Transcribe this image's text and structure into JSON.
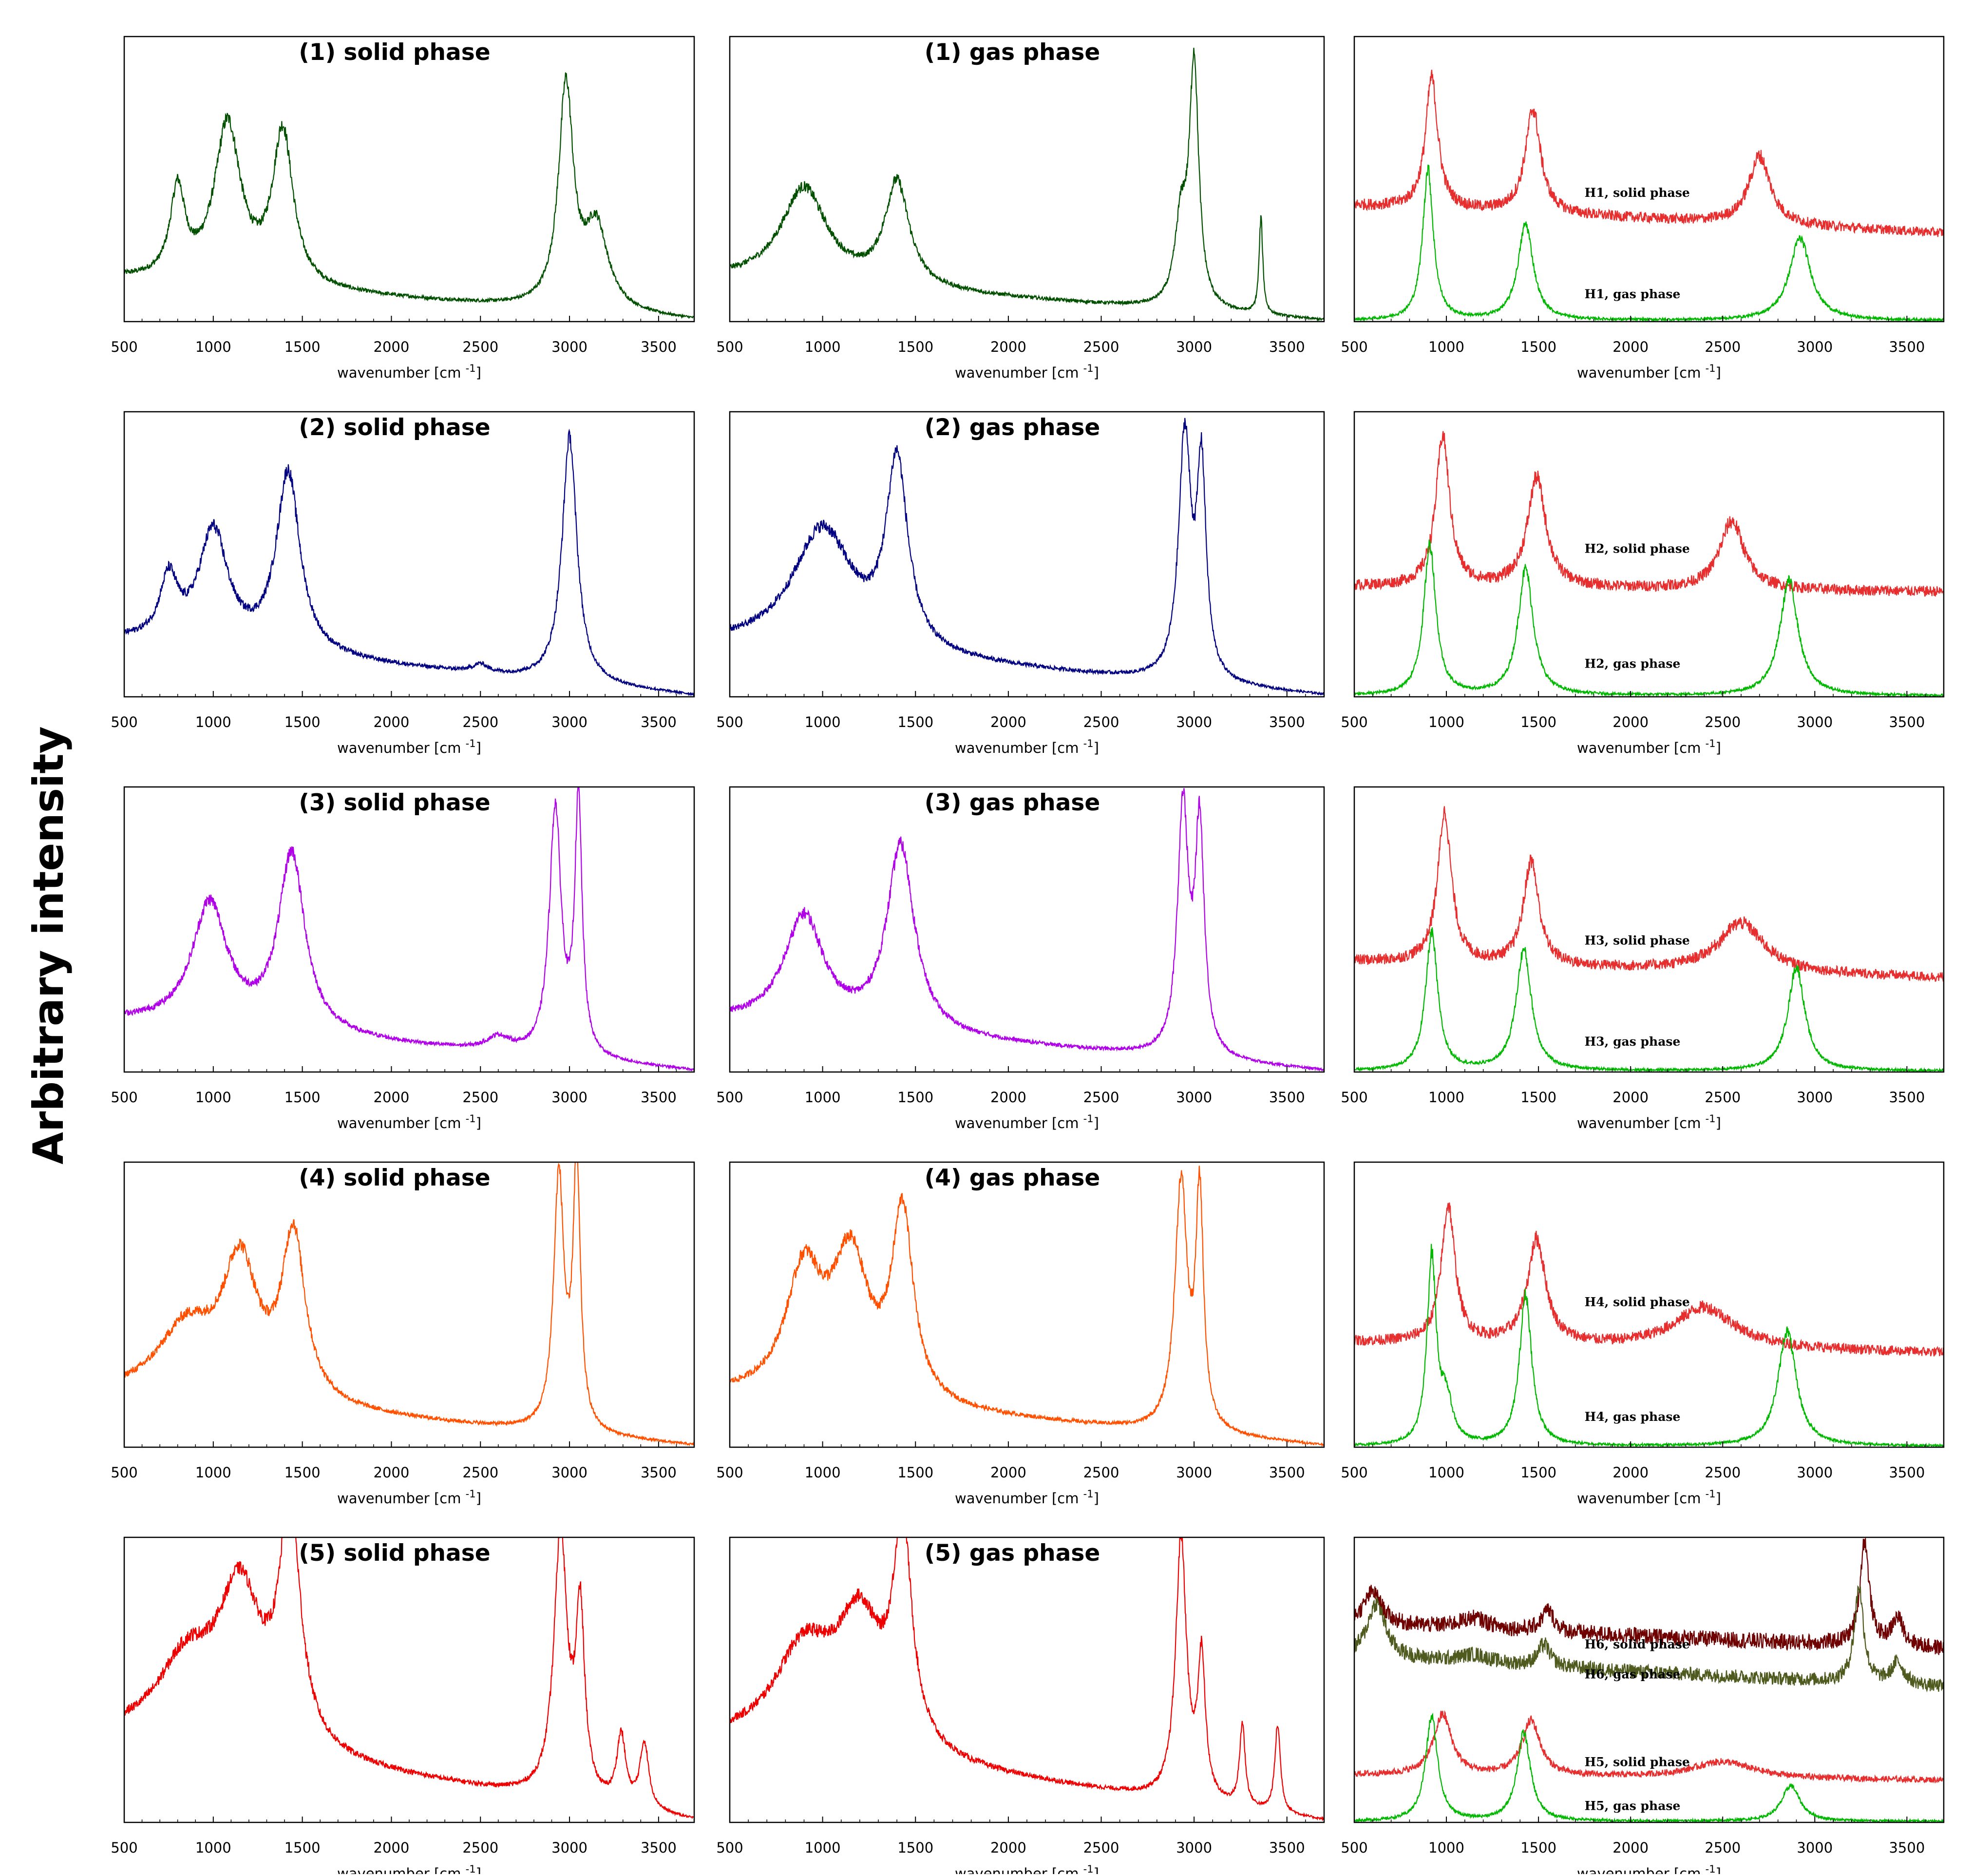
{
  "figure": {
    "ylabel": "Arbitrary intensity",
    "xlabel": "wavenumber [cm",
    "xlabel_sup": "-1",
    "xlabel_end": "]"
  },
  "chart_data": [
    {
      "type": "line",
      "row": 1,
      "col": 1,
      "title": "(1) solid phase",
      "xlim": [
        500,
        3700
      ],
      "xticks": [
        500,
        1000,
        1500,
        2000,
        2500,
        3000,
        3500
      ],
      "ylabel": "",
      "grid": false,
      "series": [
        {
          "name": "(1) solid phase",
          "color": "#005000",
          "peaks": [
            [
              800,
              0.32,
              50
            ],
            [
              1080,
              0.58,
              90
            ],
            [
              1390,
              0.56,
              70
            ],
            [
              2980,
              0.8,
              50
            ],
            [
              3150,
              0.3,
              80
            ]
          ],
          "baseline": [
            0.15,
            0.0,
            0.0
          ]
        }
      ]
    },
    {
      "type": "line",
      "row": 1,
      "col": 2,
      "title": "(1) gas phase",
      "xlim": [
        500,
        3700
      ],
      "xticks": [
        500,
        1000,
        1500,
        2000,
        2500,
        3000,
        3500
      ],
      "ylabel": "",
      "grid": false,
      "series": [
        {
          "name": "(1) gas phase",
          "color": "#005000",
          "peaks": [
            [
              900,
              0.35,
              150
            ],
            [
              1400,
              0.38,
              80
            ],
            [
              2930,
              0.3,
              40
            ],
            [
              3000,
              0.88,
              30
            ],
            [
              3360,
              0.35,
              12
            ]
          ],
          "baseline": [
            0.15,
            0.0,
            0.0
          ]
        }
      ]
    },
    {
      "type": "line",
      "row": 1,
      "col": 3,
      "title": "",
      "xlim": [
        500,
        3700
      ],
      "xticks": [
        500,
        1000,
        1500,
        2000,
        2500,
        3000,
        3500
      ],
      "ylabel": "",
      "grid": false,
      "series": [
        {
          "name": "H1, solid phase",
          "color": "#e62e2e",
          "peaks": [
            [
              920,
              0.48,
              40
            ],
            [
              1470,
              0.38,
              50
            ],
            [
              2700,
              0.25,
              70
            ]
          ],
          "baseline": [
            0.42,
            0.32,
            0.0
          ]
        },
        {
          "name": "H1, gas phase",
          "color": "#00b800",
          "peaks": [
            [
              900,
              0.55,
              35
            ],
            [
              1430,
              0.35,
              50
            ],
            [
              2920,
              0.3,
              70
            ]
          ],
          "baseline": [
            0.0,
            0.0,
            0.0
          ]
        }
      ],
      "annotations": [
        {
          "text": "H1, solid phase",
          "x": 1750,
          "y": 0.47
        },
        {
          "text": "H1, gas phase",
          "x": 1750,
          "y": 0.1
        }
      ]
    },
    {
      "type": "line",
      "row": 2,
      "col": 1,
      "title": "(2) solid phase",
      "xlim": [
        500,
        3700
      ],
      "xticks": [
        500,
        1000,
        1500,
        2000,
        2500,
        3000,
        3500
      ],
      "ylabel": "",
      "grid": false,
      "series": [
        {
          "name": "(2) solid phase",
          "color": "#000080",
          "peaks": [
            [
              750,
              0.22,
              60
            ],
            [
              1000,
              0.42,
              100
            ],
            [
              1420,
              0.66,
              80
            ],
            [
              3000,
              0.9,
              50
            ],
            [
              2500,
              0.03,
              50
            ]
          ],
          "baseline": [
            0.2,
            0.0,
            0.0
          ]
        }
      ]
    },
    {
      "type": "line",
      "row": 2,
      "col": 2,
      "title": "(2) gas phase",
      "xlim": [
        500,
        3700
      ],
      "xticks": [
        500,
        1000,
        1500,
        2000,
        2500,
        3000,
        3500
      ],
      "ylabel": "",
      "grid": false,
      "series": [
        {
          "name": "(2) gas phase",
          "color": "#000080",
          "peaks": [
            [
              1000,
              0.45,
              200
            ],
            [
              1400,
              0.68,
              70
            ],
            [
              2950,
              0.88,
              40
            ],
            [
              3040,
              0.75,
              30
            ]
          ],
          "baseline": [
            0.18,
            0.0,
            0.0
          ]
        }
      ]
    },
    {
      "type": "line",
      "row": 2,
      "col": 3,
      "title": "",
      "xlim": [
        500,
        3700
      ],
      "xticks": [
        500,
        1000,
        1500,
        2000,
        2500,
        3000,
        3500
      ],
      "ylabel": "",
      "grid": false,
      "series": [
        {
          "name": "H2, solid phase",
          "color": "#e62e2e",
          "peaks": [
            [
              980,
              0.55,
              45
            ],
            [
              1490,
              0.4,
              60
            ],
            [
              2550,
              0.25,
              80
            ]
          ],
          "baseline": [
            0.4,
            0.38,
            0.0
          ]
        },
        {
          "name": "H2, gas phase",
          "color": "#00b800",
          "peaks": [
            [
              910,
              0.55,
              40
            ],
            [
              1430,
              0.46,
              50
            ],
            [
              2860,
              0.42,
              60
            ]
          ],
          "baseline": [
            0.0,
            0.0,
            0.0
          ]
        }
      ],
      "annotations": [
        {
          "text": "H2, solid phase",
          "x": 1750,
          "y": 0.54
        },
        {
          "text": "H2, gas phase",
          "x": 1750,
          "y": 0.12
        }
      ]
    },
    {
      "type": "line",
      "row": 3,
      "col": 1,
      "title": "(3) solid phase",
      "xlim": [
        500,
        3700
      ],
      "xticks": [
        500,
        1000,
        1500,
        2000,
        2500,
        3000,
        3500
      ],
      "ylabel": "",
      "grid": false,
      "series": [
        {
          "name": "(3) solid phase",
          "color": "#b000e8",
          "peaks": [
            [
              980,
              0.45,
              120
            ],
            [
              1440,
              0.65,
              90
            ],
            [
              2920,
              0.9,
              40
            ],
            [
              3050,
              0.92,
              25
            ],
            [
              2600,
              0.05,
              80
            ]
          ],
          "baseline": [
            0.18,
            0.0,
            0.0
          ]
        }
      ]
    },
    {
      "type": "line",
      "row": 3,
      "col": 2,
      "title": "(3) gas phase",
      "xlim": [
        500,
        3700
      ],
      "xticks": [
        500,
        1000,
        1500,
        2000,
        2500,
        3000,
        3500
      ],
      "ylabel": "",
      "grid": false,
      "series": [
        {
          "name": "(3) gas phase",
          "color": "#b000e8",
          "peaks": [
            [
              900,
              0.4,
              130
            ],
            [
              1420,
              0.68,
              90
            ],
            [
              2940,
              0.9,
              35
            ],
            [
              3030,
              0.82,
              30
            ]
          ],
          "baseline": [
            0.18,
            0.0,
            0.0
          ]
        }
      ]
    },
    {
      "type": "line",
      "row": 3,
      "col": 3,
      "title": "",
      "xlim": [
        500,
        3700
      ],
      "xticks": [
        500,
        1000,
        1500,
        2000,
        2500,
        3000,
        3500
      ],
      "ylabel": "",
      "grid": false,
      "series": [
        {
          "name": "H3, solid phase",
          "color": "#e62e2e",
          "peaks": [
            [
              990,
              0.55,
              45
            ],
            [
              1460,
              0.38,
              50
            ],
            [
              2600,
              0.18,
              150
            ]
          ],
          "baseline": [
            0.4,
            0.34,
            0.0
          ]
        },
        {
          "name": "H3, gas phase",
          "color": "#00b800",
          "peaks": [
            [
              920,
              0.5,
              40
            ],
            [
              1420,
              0.44,
              50
            ],
            [
              2900,
              0.38,
              55
            ]
          ],
          "baseline": [
            0.0,
            0.0,
            0.0
          ]
        }
      ],
      "annotations": [
        {
          "text": "H3, solid phase",
          "x": 1750,
          "y": 0.48
        },
        {
          "text": "H3, gas phase",
          "x": 1750,
          "y": 0.11
        }
      ]
    },
    {
      "type": "line",
      "row": 4,
      "col": 1,
      "title": "(4) solid phase",
      "xlim": [
        500,
        3700
      ],
      "xticks": [
        500,
        1000,
        1500,
        2000,
        2500,
        3000,
        3500
      ],
      "ylabel": "",
      "grid": false,
      "series": [
        {
          "name": "(4) solid phase",
          "color": "#ff5000",
          "peaks": [
            [
              850,
              0.25,
              200
            ],
            [
              1150,
              0.48,
              120
            ],
            [
              1450,
              0.6,
              80
            ],
            [
              2940,
              0.92,
              35
            ],
            [
              3040,
              0.96,
              25
            ]
          ],
          "baseline": [
            0.18,
            0.0,
            0.0
          ]
        }
      ]
    },
    {
      "type": "line",
      "row": 4,
      "col": 2,
      "title": "(4) gas phase",
      "xlim": [
        500,
        3700
      ],
      "xticks": [
        500,
        1000,
        1500,
        2000,
        2500,
        3000,
        3500
      ],
      "ylabel": "",
      "grid": false,
      "series": [
        {
          "name": "(4) gas phase",
          "color": "#ff5000",
          "peaks": [
            [
              900,
              0.45,
              120
            ],
            [
              1150,
              0.5,
              120
            ],
            [
              1430,
              0.68,
              70
            ],
            [
              2930,
              0.9,
              40
            ],
            [
              3030,
              0.84,
              25
            ]
          ],
          "baseline": [
            0.18,
            0.0,
            0.0
          ]
        }
      ]
    },
    {
      "type": "line",
      "row": 4,
      "col": 3,
      "title": "",
      "xlim": [
        500,
        3700
      ],
      "xticks": [
        500,
        1000,
        1500,
        2000,
        2500,
        3000,
        3500
      ],
      "ylabel": "",
      "grid": false,
      "series": [
        {
          "name": "H4, solid phase",
          "color": "#e62e2e",
          "peaks": [
            [
              1010,
              0.5,
              45
            ],
            [
              1490,
              0.38,
              60
            ],
            [
              2400,
              0.15,
              200
            ]
          ],
          "baseline": [
            0.38,
            0.34,
            0.0
          ]
        },
        {
          "name": "H4, gas phase",
          "color": "#00b800",
          "peaks": [
            [
              920,
              0.68,
              30
            ],
            [
              1430,
              0.55,
              40
            ],
            [
              2850,
              0.42,
              60
            ],
            [
              1000,
              0.15,
              40
            ]
          ],
          "baseline": [
            0.0,
            0.0,
            0.0
          ]
        }
      ],
      "annotations": [
        {
          "text": "H4, solid phase",
          "x": 1750,
          "y": 0.53
        },
        {
          "text": "H4, gas phase",
          "x": 1750,
          "y": 0.11
        }
      ]
    },
    {
      "type": "line",
      "row": 5,
      "col": 1,
      "title": "(5) solid phase",
      "xlim": [
        500,
        3700
      ],
      "xticks": [
        500,
        1000,
        1500,
        2000,
        2500,
        3000,
        3500
      ],
      "ylabel": "",
      "grid": false,
      "series": [
        {
          "name": "(5) solid phase",
          "color": "#ee0000",
          "peaks": [
            [
              850,
              0.28,
              200
            ],
            [
              1150,
              0.55,
              150
            ],
            [
              1430,
              0.85,
              70
            ],
            [
              2950,
              0.96,
              45
            ],
            [
              3060,
              0.65,
              30
            ],
            [
              3290,
              0.25,
              30
            ],
            [
              3420,
              0.24,
              30
            ]
          ],
          "baseline": [
            0.3,
            0.0,
            0.0
          ]
        }
      ]
    },
    {
      "type": "line",
      "row": 5,
      "col": 2,
      "title": "(5) gas phase",
      "xlim": [
        500,
        3700
      ],
      "xticks": [
        500,
        1000,
        1500,
        2000,
        2500,
        3000,
        3500
      ],
      "ylabel": "",
      "grid": false,
      "series": [
        {
          "name": "(5) gas phase",
          "color": "#ee0000",
          "peaks": [
            [
              900,
              0.35,
              200
            ],
            [
              1200,
              0.45,
              150
            ],
            [
              1430,
              0.78,
              60
            ],
            [
              2930,
              0.95,
              35
            ],
            [
              3040,
              0.5,
              25
            ],
            [
              3260,
              0.3,
              18
            ],
            [
              3450,
              0.32,
              18
            ]
          ],
          "baseline": [
            0.28,
            0.0,
            0.0
          ]
        }
      ]
    },
    {
      "type": "line",
      "row": 5,
      "col": 3,
      "title": "",
      "xlim": [
        500,
        3700
      ],
      "xticks": [
        500,
        1000,
        1500,
        2000,
        2500,
        3000,
        3500
      ],
      "ylabel": "",
      "grid": false,
      "series": [
        {
          "name": "H6, solid phase",
          "color": "#6e0000",
          "peaks": [
            [
              600,
              0.12,
              60
            ],
            [
              1150,
              0.04,
              100
            ],
            [
              1550,
              0.08,
              40
            ],
            [
              3270,
              0.38,
              30
            ],
            [
              3450,
              0.1,
              40
            ]
          ],
          "baseline": [
            0.72,
            0.63,
            0.0
          ]
        },
        {
          "name": "H6, gas phase",
          "color": "#4e5a1e",
          "peaks": [
            [
              620,
              0.2,
              60
            ],
            [
              1150,
              0.03,
              100
            ],
            [
              1530,
              0.08,
              40
            ],
            [
              3240,
              0.35,
              30
            ],
            [
              3450,
              0.08,
              40
            ]
          ],
          "baseline": [
            0.6,
            0.49,
            0.0
          ]
        },
        {
          "name": "H5, solid phase",
          "color": "#e62e2e",
          "peaks": [
            [
              980,
              0.22,
              60
            ],
            [
              1460,
              0.2,
              60
            ],
            [
              2500,
              0.06,
              200
            ]
          ],
          "baseline": [
            0.17,
            0.15,
            0.0
          ]
        },
        {
          "name": "H5, gas phase",
          "color": "#00b800",
          "peaks": [
            [
              920,
              0.38,
              40
            ],
            [
              1420,
              0.32,
              45
            ],
            [
              2870,
              0.13,
              60
            ]
          ],
          "baseline": [
            0.0,
            0.0,
            0.0
          ]
        }
      ],
      "annotations": [
        {
          "text": "H6, solid phase",
          "x": 1750,
          "y": 0.65
        },
        {
          "text": "H6, gas phase",
          "x": 1750,
          "y": 0.54
        },
        {
          "text": "H5, solid phase",
          "x": 1750,
          "y": 0.22
        },
        {
          "text": "H5, gas phase",
          "x": 1750,
          "y": 0.06
        }
      ]
    }
  ]
}
